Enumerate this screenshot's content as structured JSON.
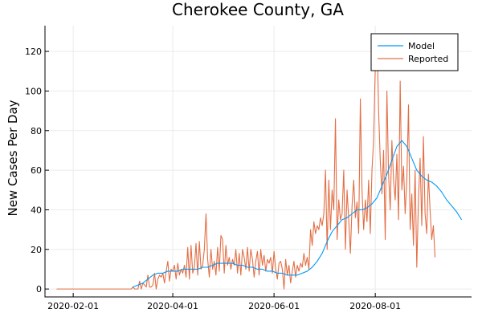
{
  "chart_data": {
    "type": "line",
    "title": "Cherokee County, GA",
    "xlabel": "",
    "ylabel": "New Cases Per Day",
    "x_ticks": [
      "2020-02-01",
      "2020-04-01",
      "2020-06-01",
      "2020-08-01"
    ],
    "y_ticks": [
      0,
      20,
      40,
      60,
      80,
      100,
      120
    ],
    "xlim": [
      "2020-01-15",
      "2020-09-28"
    ],
    "ylim": [
      -4,
      133
    ],
    "grid": true,
    "legend_position": "top-right",
    "x_start": "2020-01-22",
    "series": [
      {
        "name": "Model",
        "color": "#009af9",
        "x_start": "2020-03-08",
        "step_days": 3,
        "values": [
          1,
          2,
          3,
          5,
          7,
          8,
          8,
          9,
          9,
          9,
          10,
          10,
          10,
          10,
          11,
          11,
          12,
          13,
          13,
          13,
          13,
          12,
          12,
          11,
          11,
          10,
          10,
          9,
          9,
          8,
          8,
          7,
          7,
          7,
          8,
          9,
          11,
          14,
          18,
          24,
          29,
          32,
          35,
          36,
          38,
          40,
          40,
          41,
          43,
          46,
          52,
          58,
          65,
          72,
          75,
          72,
          66,
          60,
          57,
          55,
          54,
          52,
          49,
          45,
          42,
          39,
          35
        ]
      },
      {
        "name": "Reported",
        "color": "#e26f46",
        "values": [
          0,
          0,
          0,
          0,
          0,
          0,
          0,
          0,
          0,
          0,
          0,
          0,
          0,
          0,
          0,
          0,
          0,
          0,
          0,
          0,
          0,
          0,
          0,
          0,
          0,
          0,
          0,
          0,
          0,
          0,
          0,
          0,
          0,
          0,
          0,
          0,
          0,
          0,
          0,
          0,
          0,
          0,
          0,
          0,
          0,
          0,
          1,
          0,
          0,
          0,
          4,
          0,
          3,
          2,
          1,
          7,
          1,
          1,
          2,
          8,
          0,
          5,
          7,
          6,
          8,
          3,
          9,
          14,
          4,
          10,
          9,
          12,
          5,
          13,
          7,
          10,
          8,
          12,
          6,
          21,
          5,
          22,
          8,
          11,
          23,
          7,
          24,
          10,
          12,
          20,
          38,
          15,
          6,
          20,
          10,
          14,
          7,
          21,
          9,
          27,
          25,
          8,
          22,
          12,
          16,
          10,
          15,
          12,
          20,
          8,
          18,
          7,
          20,
          16,
          10,
          21,
          9,
          20,
          15,
          6,
          14,
          19,
          7,
          20,
          12,
          17,
          9,
          15,
          13,
          16,
          8,
          19,
          10,
          5,
          13,
          14,
          10,
          0,
          15,
          7,
          12,
          3,
          9,
          14,
          6,
          12,
          9,
          13,
          11,
          18,
          12,
          16,
          10,
          30,
          22,
          34,
          28,
          32,
          30,
          36,
          32,
          38,
          60,
          20,
          55,
          30,
          50,
          40,
          86,
          25,
          45,
          35,
          38,
          60,
          20,
          50,
          35,
          18,
          42,
          55,
          36,
          44,
          28,
          96,
          50,
          30,
          45,
          34,
          55,
          28,
          60,
          75,
          112,
          128,
          90,
          65,
          48,
          70,
          25,
          100,
          58,
          40,
          75,
          55,
          45,
          68,
          35,
          105,
          50,
          62,
          38,
          55,
          93,
          30,
          48,
          22,
          60,
          11,
          45,
          66,
          32,
          77,
          38,
          28,
          58,
          40,
          25,
          32,
          16
        ]
      }
    ]
  }
}
